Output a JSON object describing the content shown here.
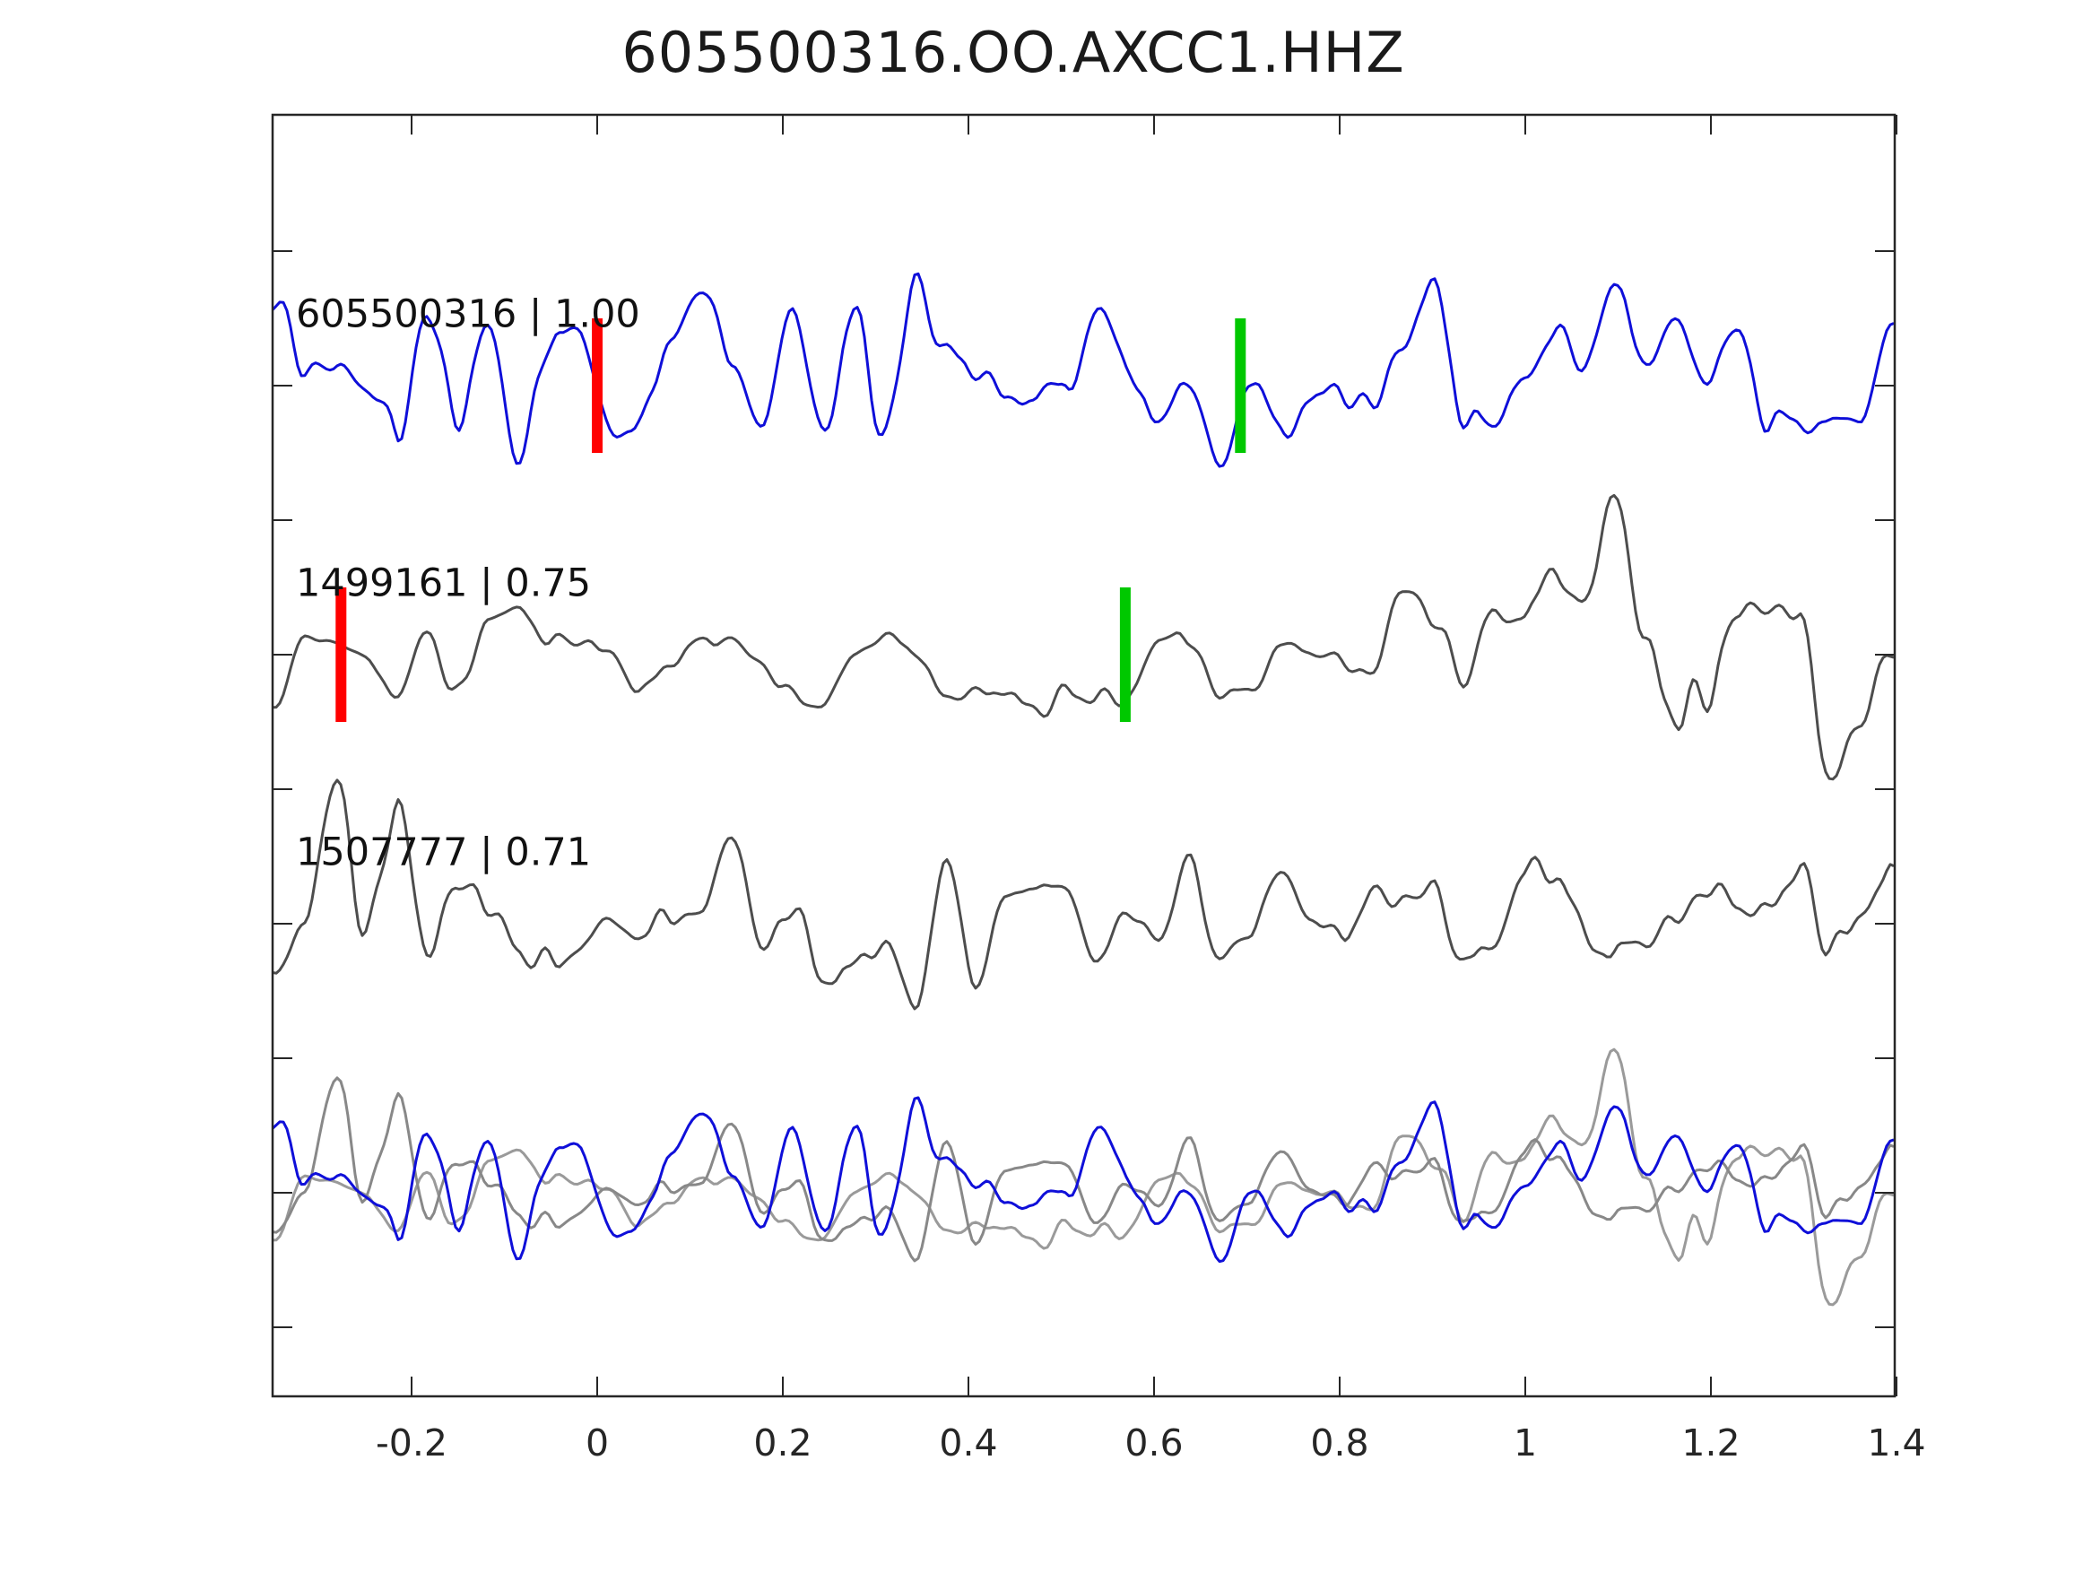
{
  "title": "605500316.OO.AXCC1.HHZ",
  "chart_data": {
    "type": "line",
    "title": "605500316.OO.AXCC1.HHZ",
    "xlabel": "",
    "ylabel": "",
    "xlim": [
      -0.35,
      1.4
    ],
    "xticks": [
      -0.2,
      0,
      0.2,
      0.4,
      0.6,
      0.8,
      1,
      1.2,
      1.4
    ],
    "xtick_labels": [
      "-0.2",
      "0",
      "0.2",
      "0.4",
      "0.6",
      "0.8",
      "1",
      "1.2",
      "1.4"
    ],
    "n_yticks": 9,
    "grid": false,
    "legend": false,
    "tick_direction": "in",
    "axis_color": "#262626",
    "pick_colors": {
      "red": "#ff0000",
      "green": "#00c800"
    },
    "traces": [
      {
        "id": "605500316",
        "label": "605500316 | 1.00",
        "correlation": "1.00",
        "row": 1,
        "color": "#0f0fd9",
        "amp": 112,
        "seed": 101,
        "envelope": [
          [
            -0.35,
            1.0
          ],
          [
            1.4,
            1.0
          ]
        ],
        "picks": [
          {
            "color": "red",
            "t": 0.0
          },
          {
            "color": "green",
            "t": 0.693
          }
        ]
      },
      {
        "id": "1499161",
        "label": "1499161 | 0.75",
        "correlation": "0.75",
        "row": 2,
        "color": "#4d4d4d",
        "amp": 70,
        "seed": 202,
        "envelope": [
          [
            -0.35,
            0.9
          ],
          [
            0.7,
            0.85
          ],
          [
            0.95,
            1.4
          ],
          [
            1.1,
            2.5
          ],
          [
            1.25,
            2.3
          ],
          [
            1.4,
            1.9
          ]
        ],
        "picks": [
          {
            "color": "red",
            "t": -0.276
          },
          {
            "color": "green",
            "t": 0.569
          }
        ]
      },
      {
        "id": "1507777",
        "label": "1507777 | 0.71",
        "correlation": "0.71",
        "row": 3,
        "color": "#4d4d4d",
        "amp": 90,
        "seed": 303,
        "envelope": [
          [
            -0.35,
            1.6
          ],
          [
            -0.1,
            1.45
          ],
          [
            0.15,
            1.0
          ],
          [
            1.2,
            1.0
          ],
          [
            1.4,
            1.15
          ]
        ],
        "picks": []
      },
      {
        "id": "overlay",
        "label": "",
        "row": 4,
        "components": [
          {
            "ref": "1499161",
            "color": "#9a9a9a",
            "scale": 0.9
          },
          {
            "ref": "1507777",
            "color": "#888888",
            "scale": 0.8
          },
          {
            "ref": "605500316",
            "color": "#0f0fd9",
            "scale": 0.85
          }
        ]
      }
    ]
  }
}
